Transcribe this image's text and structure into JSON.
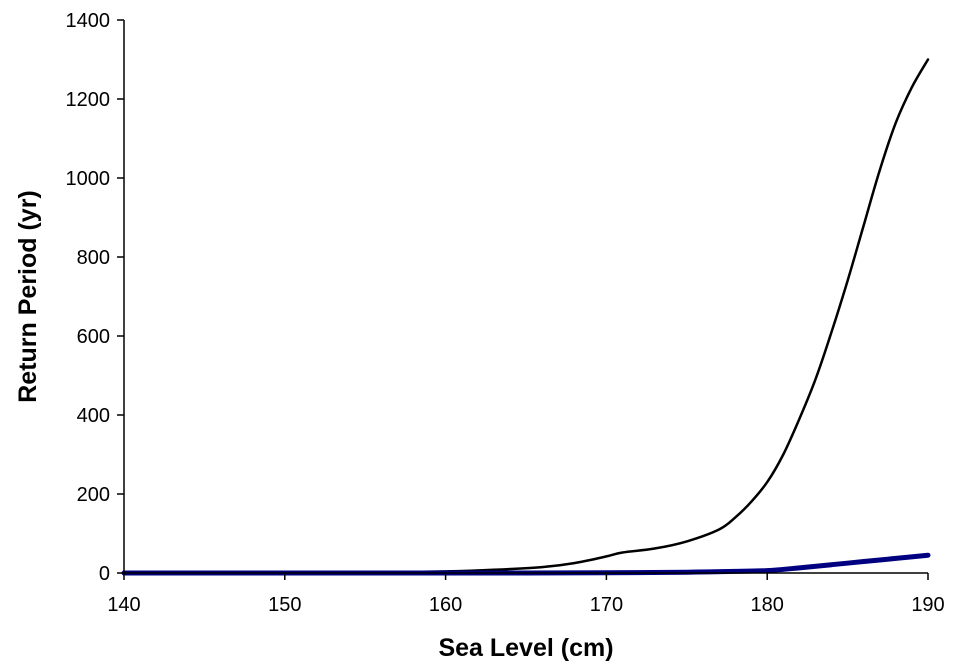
{
  "chart_data": {
    "type": "line",
    "title": "",
    "xlabel": "Sea Level (cm)",
    "ylabel": "Return Period (yr)",
    "xlim": [
      140,
      190
    ],
    "ylim": [
      0,
      1400
    ],
    "xticks": [
      140,
      150,
      160,
      170,
      180,
      190
    ],
    "yticks": [
      0,
      200,
      400,
      600,
      800,
      1000,
      1200,
      1400
    ],
    "xtick_labels": [
      "140",
      "150",
      "160",
      "170",
      "180",
      "190"
    ],
    "ytick_labels": [
      "0",
      "200",
      "400",
      "600",
      "800",
      "1000",
      "1200",
      "1400"
    ],
    "grid": false,
    "legend": "none",
    "series": [
      {
        "color": "#000000",
        "stroke_weight": "thin",
        "x": [
          140,
          150,
          155,
          160,
          163,
          166,
          168,
          170,
          171,
          173,
          175,
          177,
          178,
          179,
          180,
          181,
          182,
          183,
          184,
          185,
          186,
          187,
          188,
          189,
          190
        ],
        "y": [
          0,
          0.5,
          1,
          4,
          8,
          15,
          25,
          42,
          52,
          62,
          80,
          110,
          140,
          180,
          230,
          300,
          390,
          490,
          610,
          740,
          880,
          1020,
          1140,
          1230,
          1300
        ]
      },
      {
        "color": "#000080",
        "stroke_weight": "thick",
        "x": [
          140,
          150,
          160,
          165,
          170,
          175,
          178,
          180,
          182,
          184,
          186,
          188,
          190
        ],
        "y": [
          0,
          0,
          0,
          0,
          0.5,
          2,
          4,
          6,
          13,
          21,
          29,
          37,
          45
        ]
      }
    ]
  }
}
